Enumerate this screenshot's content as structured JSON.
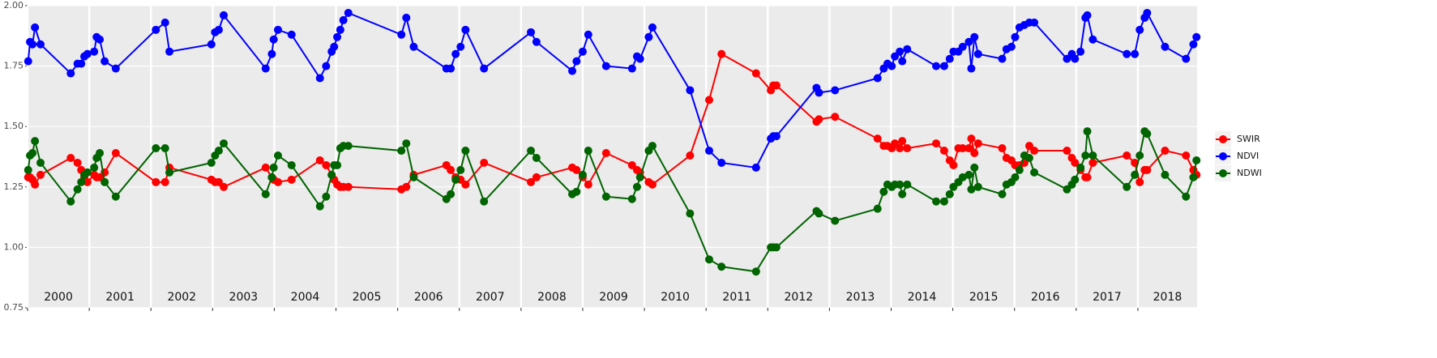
{
  "chart_data": {
    "type": "line",
    "x": [
      2000.01,
      2000.04,
      2000.08,
      2000.12,
      2000.21,
      2000.7,
      2000.81,
      2000.87,
      2000.92,
      2000.97,
      2001.08,
      2001.12,
      2001.17,
      2001.25,
      2001.43,
      2002.08,
      2002.23,
      2002.3,
      2002.98,
      2003.04,
      2003.1,
      2003.18,
      2003.86,
      2003.96,
      2003.99,
      2004.06,
      2004.28,
      2004.74,
      2004.84,
      2004.93,
      2004.97,
      2005.02,
      2005.07,
      2005.12,
      2005.2,
      2006.06,
      2006.14,
      2006.26,
      2006.79,
      2006.86,
      2006.94,
      2007.02,
      2007.1,
      2007.4,
      2008.16,
      2008.25,
      2008.83,
      2008.9,
      2009.0,
      2009.09,
      2009.38,
      2009.8,
      2009.88,
      2009.93,
      2010.07,
      2010.13,
      2010.74,
      2011.05,
      2011.25,
      2011.81,
      2012.05,
      2012.09,
      2012.14,
      2012.79,
      2012.83,
      2013.09,
      2013.78,
      2013.88,
      2013.94,
      2014.01,
      2014.06,
      2014.14,
      2014.18,
      2014.26,
      2014.73,
      2014.86,
      2014.95,
      2015.01,
      2015.09,
      2015.16,
      2015.26,
      2015.3,
      2015.35,
      2015.41,
      2015.8,
      2015.87,
      2015.95,
      2016.01,
      2016.08,
      2016.16,
      2016.24,
      2016.32,
      2016.85,
      2016.93,
      2016.98,
      2017.07,
      2017.15,
      2017.18,
      2017.27,
      2017.82,
      2017.95,
      2018.03,
      2018.11,
      2018.15,
      2018.44,
      2018.78,
      2018.9,
      2018.95
    ],
    "series": [
      {
        "name": "SWIR",
        "color": "#ff0000",
        "values": [
          1.29,
          1.29,
          1.28,
          1.26,
          1.3,
          1.37,
          1.35,
          1.32,
          1.29,
          1.27,
          1.3,
          1.29,
          1.29,
          1.31,
          1.39,
          1.27,
          1.27,
          1.33,
          1.28,
          1.27,
          1.27,
          1.25,
          1.33,
          1.29,
          1.28,
          1.27,
          1.28,
          1.36,
          1.34,
          1.3,
          1.28,
          1.26,
          1.25,
          1.25,
          1.25,
          1.24,
          1.25,
          1.3,
          1.34,
          1.32,
          1.29,
          1.28,
          1.26,
          1.35,
          1.27,
          1.29,
          1.33,
          1.32,
          1.29,
          1.26,
          1.39,
          1.34,
          1.32,
          1.31,
          1.27,
          1.26,
          1.38,
          1.61,
          1.8,
          1.72,
          1.65,
          1.67,
          1.67,
          1.52,
          1.53,
          1.54,
          1.45,
          1.42,
          1.42,
          1.41,
          1.43,
          1.41,
          1.44,
          1.41,
          1.43,
          1.4,
          1.36,
          1.34,
          1.41,
          1.41,
          1.41,
          1.45,
          1.39,
          1.43,
          1.41,
          1.37,
          1.36,
          1.34,
          1.34,
          1.35,
          1.42,
          1.4,
          1.4,
          1.37,
          1.35,
          1.32,
          1.29,
          1.29,
          1.35,
          1.38,
          1.35,
          1.27,
          1.32,
          1.32,
          1.4,
          1.38,
          1.32,
          1.3
        ]
      },
      {
        "name": "NDVI",
        "color": "#0000ff",
        "values": [
          1.77,
          1.85,
          1.84,
          1.91,
          1.84,
          1.72,
          1.76,
          1.76,
          1.79,
          1.8,
          1.81,
          1.87,
          1.86,
          1.77,
          1.74,
          1.9,
          1.93,
          1.81,
          1.84,
          1.89,
          1.9,
          1.96,
          1.74,
          1.8,
          1.86,
          1.9,
          1.88,
          1.7,
          1.75,
          1.81,
          1.83,
          1.87,
          1.9,
          1.94,
          1.97,
          1.88,
          1.95,
          1.83,
          1.74,
          1.74,
          1.8,
          1.83,
          1.9,
          1.74,
          1.89,
          1.85,
          1.73,
          1.77,
          1.81,
          1.88,
          1.75,
          1.74,
          1.79,
          1.78,
          1.87,
          1.91,
          1.65,
          1.4,
          1.35,
          1.33,
          1.45,
          1.46,
          1.46,
          1.66,
          1.64,
          1.65,
          1.7,
          1.74,
          1.76,
          1.75,
          1.79,
          1.81,
          1.77,
          1.82,
          1.75,
          1.75,
          1.78,
          1.81,
          1.81,
          1.83,
          1.85,
          1.74,
          1.87,
          1.8,
          1.78,
          1.82,
          1.83,
          1.87,
          1.91,
          1.92,
          1.93,
          1.93,
          1.78,
          1.8,
          1.78,
          1.81,
          1.95,
          1.96,
          1.86,
          1.8,
          1.8,
          1.9,
          1.95,
          1.97,
          1.83,
          1.78,
          1.84,
          1.87
        ]
      },
      {
        "name": "NDWI",
        "color": "#006400",
        "values": [
          1.32,
          1.38,
          1.39,
          1.44,
          1.35,
          1.19,
          1.24,
          1.27,
          1.3,
          1.31,
          1.33,
          1.37,
          1.39,
          1.27,
          1.21,
          1.41,
          1.41,
          1.31,
          1.35,
          1.38,
          1.4,
          1.43,
          1.22,
          1.29,
          1.33,
          1.38,
          1.34,
          1.17,
          1.21,
          1.3,
          1.34,
          1.34,
          1.41,
          1.42,
          1.42,
          1.4,
          1.43,
          1.29,
          1.2,
          1.22,
          1.28,
          1.32,
          1.4,
          1.19,
          1.4,
          1.37,
          1.22,
          1.23,
          1.3,
          1.4,
          1.21,
          1.2,
          1.25,
          1.29,
          1.4,
          1.42,
          1.14,
          0.95,
          0.92,
          0.9,
          1.0,
          1.0,
          1.0,
          1.15,
          1.14,
          1.11,
          1.16,
          1.23,
          1.26,
          1.25,
          1.26,
          1.26,
          1.22,
          1.26,
          1.19,
          1.19,
          1.22,
          1.25,
          1.27,
          1.29,
          1.3,
          1.24,
          1.33,
          1.25,
          1.22,
          1.26,
          1.27,
          1.29,
          1.32,
          1.38,
          1.37,
          1.31,
          1.24,
          1.26,
          1.28,
          1.33,
          1.38,
          1.48,
          1.38,
          1.25,
          1.3,
          1.38,
          1.48,
          1.47,
          1.3,
          1.21,
          1.29,
          1.36
        ]
      }
    ],
    "xlim": [
      2000,
      2018.96
    ],
    "xticks": [
      2000,
      2001,
      2002,
      2003,
      2004,
      2005,
      2006,
      2007,
      2008,
      2009,
      2010,
      2011,
      2012,
      2013,
      2014,
      2015,
      2016,
      2017,
      2018
    ],
    "year_labels": [
      "2000",
      "2001",
      "2002",
      "2003",
      "2004",
      "2005",
      "2006",
      "2007",
      "2008",
      "2009",
      "2010",
      "2011",
      "2012",
      "2013",
      "2014",
      "2015",
      "2016",
      "2017",
      "2018"
    ],
    "ylim": [
      0.75,
      2.0
    ],
    "yticks": [
      {
        "value": 0.75,
        "label": "0.75"
      },
      {
        "value": 1,
        "label": "1.00"
      },
      1.25,
      {
        "value": 1.5,
        "label": "1.50"
      },
      1.75,
      {
        "value": 2,
        "label": "2.00"
      }
    ],
    "grid": true,
    "legend": "right"
  }
}
